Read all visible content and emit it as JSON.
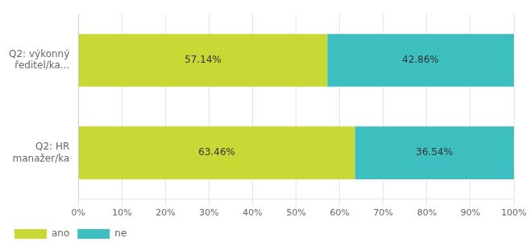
{
  "chart_data": {
    "type": "bar",
    "orientation": "horizontal",
    "stacked": true,
    "categories": [
      "Q2: výkonný\nředitel/ka...",
      "Q2: HR\nmanažer/ka"
    ],
    "series": [
      {
        "name": "ano",
        "color": "#c8d835",
        "values": [
          57.14,
          63.46
        ],
        "value_labels": [
          "57.14%",
          "63.46%"
        ]
      },
      {
        "name": "ne",
        "color": "#3dbfbf",
        "values": [
          42.86,
          36.54
        ],
        "value_labels": [
          "42.86%",
          "36.54%"
        ]
      }
    ],
    "xlim": [
      0,
      100
    ],
    "xticks": [
      {
        "value": 0,
        "label": "0%"
      },
      {
        "value": 10,
        "label": "10%"
      },
      {
        "value": 20,
        "label": "20%"
      },
      {
        "value": 30,
        "label": "30%"
      },
      {
        "value": 40,
        "label": "40%"
      },
      {
        "value": 50,
        "label": "50%"
      },
      {
        "value": 60,
        "label": "60%"
      },
      {
        "value": 70,
        "label": "70%"
      },
      {
        "value": 80,
        "label": "80%"
      },
      {
        "value": 90,
        "label": "90%"
      },
      {
        "value": 100,
        "label": "100%"
      }
    ],
    "grid": true,
    "data_labels": true,
    "legend": "lower left"
  }
}
